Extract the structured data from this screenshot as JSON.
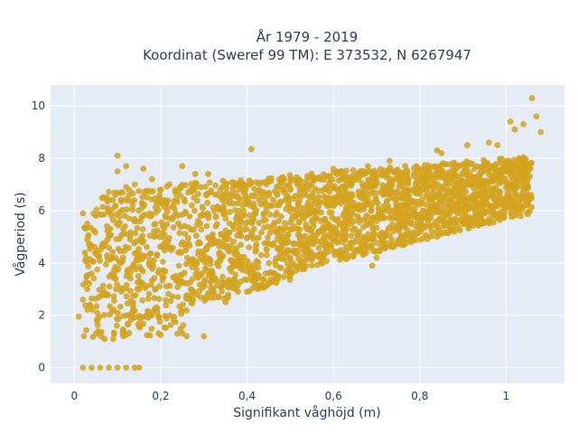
{
  "chart_data": {
    "type": "scatter",
    "title_lines": [
      "År 1979 - 2019",
      "Koordinat (Sweref 99 TM): E 373532, N 6267947"
    ],
    "xlabel": "Signifikant våghöjd (m)",
    "ylabel": "Vågperiod (s)",
    "xlim": [
      -0.055,
      1.135
    ],
    "ylim": [
      -0.6,
      10.8
    ],
    "x_ticks": [
      0,
      0.2,
      0.4,
      0.6,
      0.8,
      1
    ],
    "x_tick_labels": [
      "0",
      "0,2",
      "0,4",
      "0,6",
      "0,8",
      "1"
    ],
    "y_ticks": [
      0,
      2,
      4,
      6,
      8,
      10
    ],
    "y_tick_labels": [
      "0",
      "2",
      "4",
      "6",
      "8",
      "10"
    ],
    "grid": true,
    "marker_color": "#D4A31E",
    "background_color": "#E5ECF6",
    "grid_color": "#FFFFFF",
    "series": [
      {
        "values": [
          {
            "x": 0.02,
            "y": 0
          },
          {
            "x": 0.04,
            "y": 0
          },
          {
            "x": 0.06,
            "y": 0
          },
          {
            "x": 0.08,
            "y": 0
          },
          {
            "x": 0.1,
            "y": 0
          },
          {
            "x": 0.12,
            "y": 0
          },
          {
            "x": 0.14,
            "y": 0
          },
          {
            "x": 0.15,
            "y": 0
          },
          {
            "x": 0.01,
            "y": 1.95
          },
          {
            "x": 0.02,
            "y": 2.6
          },
          {
            "x": 0.03,
            "y": 4.9
          },
          {
            "x": 0.03,
            "y": 5.5
          },
          {
            "x": 0.02,
            "y": 5.9
          },
          {
            "x": 0.05,
            "y": 1.3
          },
          {
            "x": 0.05,
            "y": 5.8
          },
          {
            "x": 0.08,
            "y": 6.4
          },
          {
            "x": 0.1,
            "y": 7.5
          },
          {
            "x": 0.1,
            "y": 8.1
          },
          {
            "x": 0.12,
            "y": 7.7
          },
          {
            "x": 0.14,
            "y": 7.0
          },
          {
            "x": 0.16,
            "y": 7.6
          },
          {
            "x": 0.18,
            "y": 7.2
          },
          {
            "x": 0.25,
            "y": 7.7
          },
          {
            "x": 0.28,
            "y": 7.4
          },
          {
            "x": 0.31,
            "y": 7.4
          },
          {
            "x": 0.41,
            "y": 8.35
          },
          {
            "x": 0.48,
            "y": 7.25
          },
          {
            "x": 0.6,
            "y": 7.6
          },
          {
            "x": 0.68,
            "y": 7.7
          },
          {
            "x": 0.73,
            "y": 7.9
          },
          {
            "x": 0.84,
            "y": 8.3
          },
          {
            "x": 0.91,
            "y": 8.5
          },
          {
            "x": 0.96,
            "y": 8.6
          },
          {
            "x": 1.02,
            "y": 9.1
          },
          {
            "x": 1.01,
            "y": 9.4
          },
          {
            "x": 1.04,
            "y": 9.3
          },
          {
            "x": 1.06,
            "y": 10.3
          },
          {
            "x": 1.07,
            "y": 9.6
          },
          {
            "x": 1.08,
            "y": 9.0
          },
          {
            "x": 0.3,
            "y": 1.2
          },
          {
            "x": 0.2,
            "y": 1.25
          },
          {
            "x": 0.26,
            "y": 1.2
          },
          {
            "x": 0.35,
            "y": 2.5
          },
          {
            "x": 0.5,
            "y": 3.5
          },
          {
            "x": 0.55,
            "y": 3.9
          },
          {
            "x": 0.7,
            "y": 4.2
          },
          {
            "x": 0.69,
            "y": 3.9
          },
          {
            "x": 0.88,
            "y": 5.2
          },
          {
            "x": 0.84,
            "y": 5.0
          },
          {
            "x": 0.78,
            "y": 4.8
          },
          {
            "x": 0.63,
            "y": 4.5
          },
          {
            "x": 0.45,
            "y": 3.2
          },
          {
            "x": 0.4,
            "y": 2.9
          },
          {
            "x": 0.56,
            "y": 4.3
          },
          {
            "x": 0.9,
            "y": 5.5
          },
          {
            "x": 0.85,
            "y": 8.2
          },
          {
            "x": 0.98,
            "y": 8.5
          },
          {
            "x": 0.5,
            "y": 6.8
          },
          {
            "x": 0.38,
            "y": 7.0
          },
          {
            "x": 0.34,
            "y": 6.5
          },
          {
            "x": 0.45,
            "y": 6.2
          },
          {
            "x": 0.2,
            "y": 6.8
          },
          {
            "x": 0.22,
            "y": 7.0
          },
          {
            "x": 0.12,
            "y": 6.9
          },
          {
            "x": 0.07,
            "y": 1.1
          },
          {
            "x": 0.09,
            "y": 1.1
          },
          {
            "x": 0.06,
            "y": 4.5
          },
          {
            "x": 0.04,
            "y": 3.6
          },
          {
            "x": 0.03,
            "y": 3.0
          },
          {
            "x": 0.66,
            "y": 5.2
          },
          {
            "x": 0.72,
            "y": 6.0
          },
          {
            "x": 0.76,
            "y": 5.6
          },
          {
            "x": 0.62,
            "y": 5.0
          },
          {
            "x": 0.58,
            "y": 4.7
          },
          {
            "x": 0.92,
            "y": 6.5
          },
          {
            "x": 0.95,
            "y": 7.0
          },
          {
            "x": 1.0,
            "y": 7.5
          },
          {
            "x": 1.03,
            "y": 8.0
          },
          {
            "x": 0.27,
            "y": 3.0
          },
          {
            "x": 0.24,
            "y": 2.7
          },
          {
            "x": 0.32,
            "y": 3.6
          },
          {
            "x": 0.18,
            "y": 2.0
          }
        ]
      }
    ]
  }
}
